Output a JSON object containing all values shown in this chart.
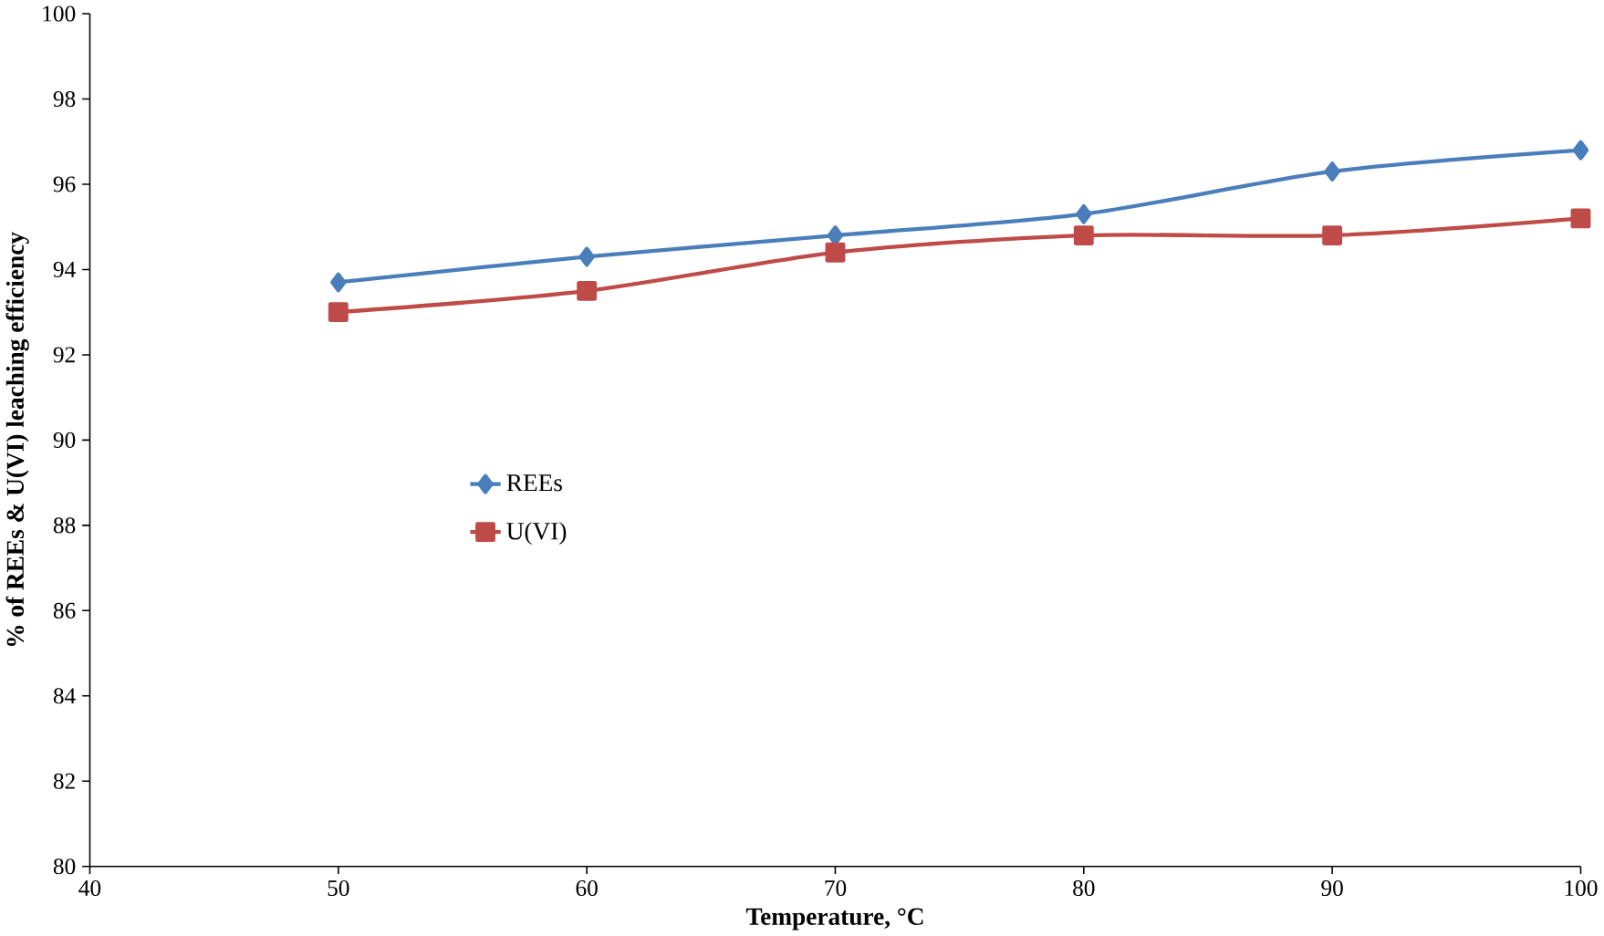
{
  "chart_data": {
    "type": "line",
    "xlabel": "Temperature, °C",
    "ylabel": "% of REEs & U(VI) leaching efficiency",
    "x": [
      50,
      60,
      70,
      80,
      90,
      100
    ],
    "series": [
      {
        "name": "REEs",
        "color": "#4a7ebb",
        "marker": "diamond",
        "values": [
          93.7,
          94.3,
          94.8,
          95.3,
          96.3,
          96.8
        ]
      },
      {
        "name": "U(VI)",
        "color": "#be4b48",
        "marker": "square",
        "values": [
          93.0,
          93.5,
          94.4,
          94.8,
          94.8,
          95.2
        ]
      }
    ],
    "xlim": [
      40,
      100
    ],
    "xticks": [
      40,
      50,
      60,
      70,
      80,
      90,
      100
    ],
    "ylim": [
      80,
      100
    ],
    "yticks": [
      80,
      82,
      84,
      86,
      88,
      90,
      92,
      94,
      96,
      98,
      100
    ],
    "grid": false,
    "legend": "left",
    "line_style": "solid"
  }
}
